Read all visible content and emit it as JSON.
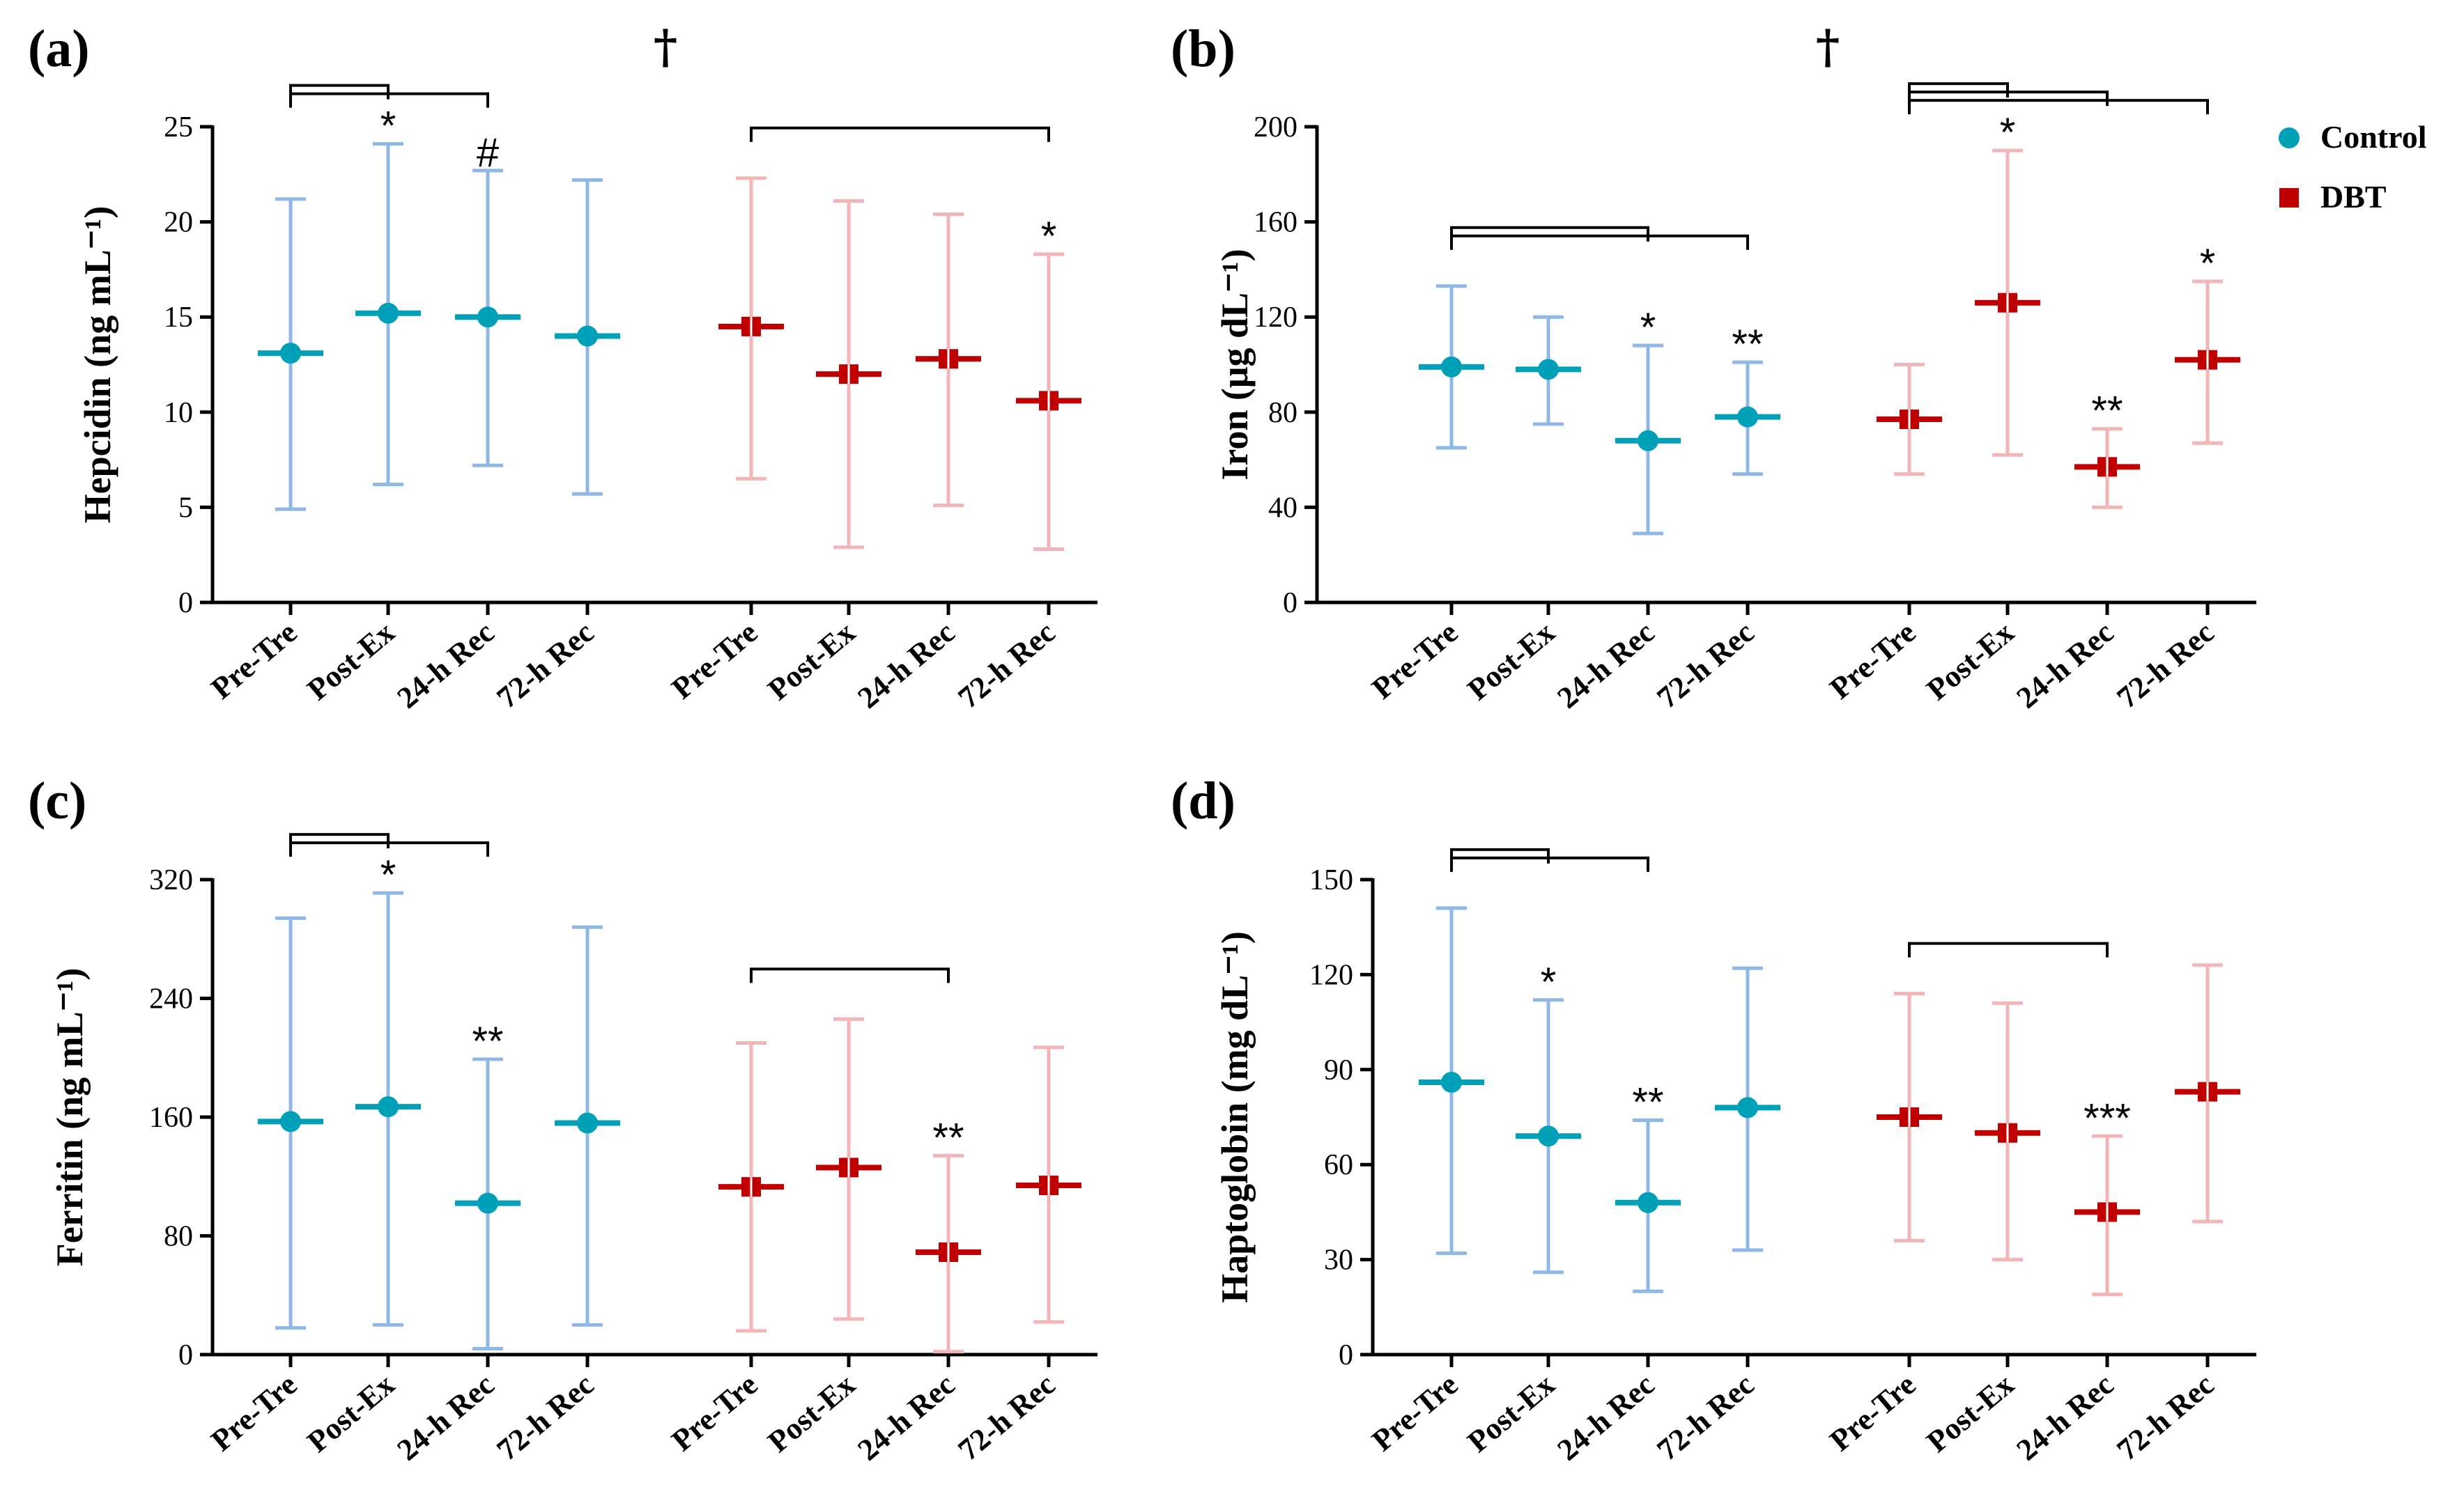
{
  "legend": {
    "items": [
      {
        "label": "Control",
        "marker": "circle",
        "color": "#00A0B8"
      },
      {
        "label": "DBT",
        "marker": "square",
        "color": "#C00000"
      }
    ]
  },
  "colors": {
    "control_marker": "#00A0B8",
    "control_errorbar": "#8FB8E6",
    "dbt_marker": "#C00000",
    "dbt_errorbar": "#F2B5B8"
  },
  "chart_data": [
    {
      "type": "scatter",
      "panel": "(a)",
      "ylabel": "Hepcidin (ng mL⁻¹)",
      "ylim": [
        0,
        25
      ],
      "yticks": [
        0,
        5,
        10,
        15,
        20,
        25
      ],
      "categories": [
        "Pre-Tre",
        "Post-Ex",
        "24-h Rec",
        "72-h Rec"
      ],
      "series": [
        {
          "name": "Control",
          "mean": [
            13.1,
            15.2,
            15.0,
            14.0
          ],
          "lower": [
            4.9,
            6.2,
            7.2,
            5.7
          ],
          "upper": [
            21.2,
            24.1,
            22.7,
            22.2
          ]
        },
        {
          "name": "DBT",
          "mean": [
            14.5,
            12.0,
            12.8,
            10.6
          ],
          "lower": [
            6.5,
            2.9,
            5.1,
            2.8
          ],
          "upper": [
            22.3,
            21.1,
            20.4,
            18.3
          ]
        }
      ],
      "dagger": "†",
      "significance": [
        {
          "series": "Control",
          "from": 0,
          "to": 1,
          "label": "*",
          "level": 0
        },
        {
          "series": "Control",
          "from": 0,
          "to": 2,
          "label": "#",
          "level": 1
        },
        {
          "series": "DBT",
          "from": 0,
          "to": 3,
          "label": "*",
          "level": 0
        }
      ]
    },
    {
      "type": "scatter",
      "panel": "(b)",
      "ylabel": "Iron (μg dL⁻¹)",
      "ylim": [
        0,
        200
      ],
      "yticks": [
        0,
        40,
        80,
        120,
        160,
        200
      ],
      "categories": [
        "Pre-Tre",
        "Post-Ex",
        "24-h Rec",
        "72-h Rec"
      ],
      "series": [
        {
          "name": "Control",
          "mean": [
            99,
            98,
            68,
            78
          ],
          "lower": [
            65,
            75,
            29,
            54
          ],
          "upper": [
            133,
            120,
            108,
            101
          ]
        },
        {
          "name": "DBT",
          "mean": [
            77,
            126,
            57,
            102
          ],
          "lower": [
            54,
            62,
            40,
            67
          ],
          "upper": [
            100,
            190,
            73,
            135
          ]
        }
      ],
      "dagger": "†",
      "significance": [
        {
          "series": "Control",
          "from": 0,
          "to": 2,
          "label": "*",
          "level": 0
        },
        {
          "series": "Control",
          "from": 0,
          "to": 3,
          "label": "**",
          "level": 1
        },
        {
          "series": "DBT",
          "from": 0,
          "to": 1,
          "label": "*",
          "level": 0
        },
        {
          "series": "DBT",
          "from": 0,
          "to": 2,
          "label": "**",
          "level": 1
        },
        {
          "series": "DBT",
          "from": 0,
          "to": 3,
          "label": "*",
          "level": 2
        }
      ]
    },
    {
      "type": "scatter",
      "panel": "(c)",
      "ylabel": "Ferritin (ng mL⁻¹)",
      "ylim": [
        0,
        320
      ],
      "yticks": [
        0,
        80,
        160,
        240,
        320
      ],
      "categories": [
        "Pre-Tre",
        "Post-Ex",
        "24-h Rec",
        "72-h Rec"
      ],
      "series": [
        {
          "name": "Control",
          "mean": [
            157,
            167,
            102,
            156
          ],
          "lower": [
            18,
            20,
            4,
            20
          ],
          "upper": [
            294,
            311,
            199,
            288
          ]
        },
        {
          "name": "DBT",
          "mean": [
            113,
            126,
            69,
            114
          ],
          "lower": [
            16,
            24,
            2,
            22
          ],
          "upper": [
            210,
            226,
            134,
            207
          ]
        }
      ],
      "significance": [
        {
          "series": "Control",
          "from": 0,
          "to": 1,
          "label": "*",
          "level": 0
        },
        {
          "series": "Control",
          "from": 0,
          "to": 2,
          "label": "**",
          "level": 1
        },
        {
          "series": "DBT",
          "from": 0,
          "to": 2,
          "label": "**",
          "level": 0
        }
      ]
    },
    {
      "type": "scatter",
      "panel": "(d)",
      "ylabel": "Haptoglobin (mg dL⁻¹)",
      "ylim": [
        0,
        150
      ],
      "yticks": [
        0,
        30,
        60,
        90,
        120,
        150
      ],
      "categories": [
        "Pre-Tre",
        "Post-Ex",
        "24-h Rec",
        "72-h Rec"
      ],
      "series": [
        {
          "name": "Control",
          "mean": [
            86,
            69,
            48,
            78
          ],
          "lower": [
            32,
            26,
            20,
            33
          ],
          "upper": [
            141,
            112,
            74,
            122
          ]
        },
        {
          "name": "DBT",
          "mean": [
            75,
            70,
            45,
            83
          ],
          "lower": [
            36,
            30,
            19,
            42
          ],
          "upper": [
            114,
            111,
            69,
            123
          ]
        }
      ],
      "significance": [
        {
          "series": "Control",
          "from": 0,
          "to": 1,
          "label": "*",
          "level": 0
        },
        {
          "series": "Control",
          "from": 0,
          "to": 2,
          "label": "**",
          "level": 1
        },
        {
          "series": "DBT",
          "from": 0,
          "to": 2,
          "label": "***",
          "level": 0
        }
      ]
    }
  ]
}
